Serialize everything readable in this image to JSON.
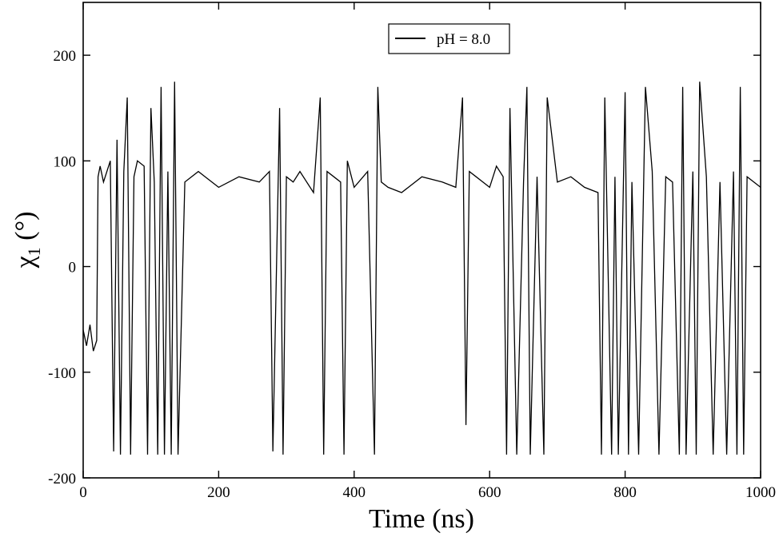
{
  "chart_data": {
    "type": "line",
    "title": "",
    "xlabel": "Time (ns)",
    "ylabel": {
      "symbol": "χ",
      "subscript": "1",
      "unit": " (°)"
    },
    "xlim": [
      0,
      1000
    ],
    "ylim": [
      -200,
      250
    ],
    "xticks": [
      0,
      200,
      400,
      600,
      800,
      1000
    ],
    "xtick_labels": [
      "0",
      "200",
      "400",
      "600",
      "800",
      "1000"
    ],
    "yticks": [
      -200,
      -100,
      0,
      100,
      200
    ],
    "ytick_labels": [
      "-200",
      "-100",
      "0",
      "100",
      "200"
    ],
    "grid": false,
    "legend_position": "top-center",
    "line_color": "#000000",
    "series": [
      {
        "name": "pH = 8.0",
        "color": "#000000",
        "x": [
          0,
          5,
          10,
          15,
          20,
          22,
          25,
          30,
          40,
          45,
          50,
          55,
          60,
          65,
          70,
          75,
          80,
          90,
          95,
          100,
          105,
          110,
          115,
          120,
          125,
          130,
          135,
          140,
          150,
          170,
          200,
          230,
          260,
          275,
          280,
          290,
          295,
          300,
          310,
          320,
          340,
          350,
          355,
          360,
          370,
          380,
          385,
          390,
          400,
          420,
          430,
          435,
          440,
          450,
          470,
          500,
          530,
          550,
          560,
          565,
          570,
          580,
          590,
          600,
          610,
          620,
          625,
          630,
          640,
          650,
          655,
          660,
          670,
          680,
          685,
          700,
          720,
          740,
          760,
          765,
          770,
          780,
          785,
          790,
          800,
          805,
          810,
          820,
          830,
          840,
          850,
          860,
          870,
          880,
          885,
          890,
          900,
          905,
          910,
          920,
          930,
          940,
          950,
          960,
          965,
          970,
          975,
          980,
          990,
          1000
        ],
        "y": [
          -60,
          -75,
          -55,
          -80,
          -70,
          85,
          95,
          80,
          100,
          -175,
          120,
          -178,
          90,
          160,
          -178,
          85,
          100,
          95,
          -178,
          150,
          80,
          -178,
          170,
          -178,
          90,
          -178,
          175,
          -178,
          80,
          90,
          75,
          85,
          80,
          90,
          -175,
          150,
          -178,
          85,
          80,
          90,
          70,
          160,
          -178,
          90,
          85,
          80,
          -178,
          100,
          75,
          90,
          -178,
          170,
          80,
          75,
          70,
          85,
          80,
          75,
          160,
          -150,
          90,
          85,
          80,
          75,
          95,
          85,
          -178,
          150,
          -178,
          80,
          170,
          -178,
          85,
          -178,
          160,
          80,
          85,
          75,
          70,
          -178,
          160,
          -178,
          85,
          -178,
          165,
          -178,
          80,
          -178,
          170,
          90,
          -178,
          85,
          80,
          -178,
          170,
          -178,
          90,
          -178,
          175,
          85,
          -178,
          80,
          -178,
          90,
          -178,
          170,
          -178,
          85,
          80,
          75
        ]
      }
    ]
  }
}
